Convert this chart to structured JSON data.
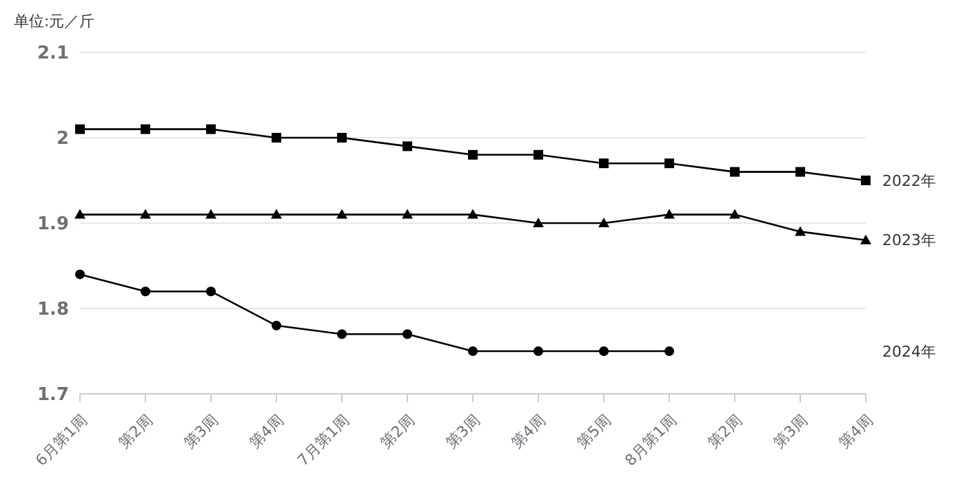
{
  "chart_data": {
    "type": "line",
    "ylabel": "单位:元／斤",
    "categories": [
      "6月第1周",
      "第2周",
      "第3周",
      "第4周",
      "7月第1周",
      "第2周",
      "第3周",
      "第4周",
      "第5周",
      "8月第1周",
      "第2周",
      "第3周",
      "第4周"
    ],
    "series": [
      {
        "name": "2022年",
        "color": "#000000",
        "marker": "square",
        "values": [
          2.01,
          2.01,
          2.01,
          2.0,
          2.0,
          1.99,
          1.98,
          1.98,
          1.97,
          1.97,
          1.96,
          1.96,
          1.95
        ]
      },
      {
        "name": "2023年",
        "color": "#000000",
        "marker": "triangle",
        "values": [
          1.91,
          1.91,
          1.91,
          1.91,
          1.91,
          1.91,
          1.91,
          1.9,
          1.9,
          1.91,
          1.91,
          1.89,
          1.88
        ]
      },
      {
        "name": "2024年",
        "color": "#000000",
        "marker": "circle",
        "values": [
          1.84,
          1.82,
          1.82,
          1.78,
          1.77,
          1.77,
          1.75,
          1.75,
          1.75,
          1.75,
          null,
          null,
          null
        ]
      }
    ],
    "ylim": [
      1.7,
      2.1
    ],
    "yticks": [
      1.7,
      1.8,
      1.9,
      2,
      2.1
    ],
    "grid": "y"
  }
}
